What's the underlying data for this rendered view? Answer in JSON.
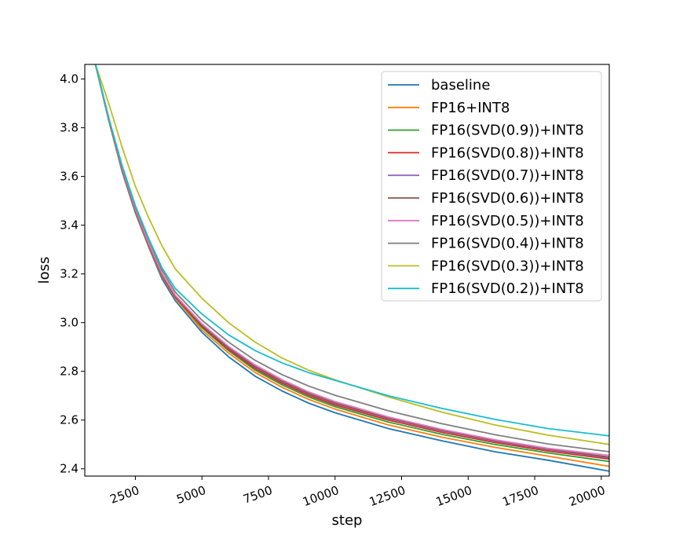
{
  "chart_data": {
    "type": "line",
    "title": "",
    "xlabel": "step",
    "ylabel": "loss",
    "xlim": [
      600,
      20300
    ],
    "ylim": [
      2.37,
      4.06
    ],
    "x_ticks": [
      2500,
      5000,
      7500,
      10000,
      12500,
      15000,
      17500,
      20000
    ],
    "y_ticks": [
      2.4,
      2.6,
      2.8,
      3.0,
      3.2,
      3.4,
      3.6,
      3.8,
      4.0
    ],
    "x_tick_labels": [
      "2500",
      "5000",
      "7500",
      "10000",
      "12500",
      "15000",
      "17500",
      "20000"
    ],
    "y_tick_labels": [
      "2.4",
      "2.6",
      "2.8",
      "3.0",
      "3.2",
      "3.4",
      "3.6",
      "3.8",
      "4.0"
    ],
    "x_tick_rotation": "20 degrees",
    "grid": false,
    "legend_position": "top-right",
    "x": [
      1000,
      1500,
      2000,
      2500,
      3000,
      3500,
      4000,
      5000,
      6000,
      7000,
      8000,
      9000,
      10000,
      12000,
      14000,
      16000,
      18000,
      20300
    ],
    "series": [
      {
        "name": "baseline",
        "color": "#1f77b4",
        "values": [
          4.06,
          3.83,
          3.62,
          3.45,
          3.31,
          3.18,
          3.09,
          2.96,
          2.86,
          2.78,
          2.72,
          2.67,
          2.63,
          2.565,
          2.515,
          2.47,
          2.435,
          2.39
        ]
      },
      {
        "name": "FP16+INT8",
        "color": "#ff7f0e",
        "values": [
          4.06,
          3.83,
          3.625,
          3.455,
          3.315,
          3.19,
          3.1,
          2.97,
          2.875,
          2.795,
          2.735,
          2.685,
          2.645,
          2.58,
          2.53,
          2.488,
          2.452,
          2.41
        ]
      },
      {
        "name": "FP16(SVD(0.9))+INT8",
        "color": "#2ca02c",
        "values": [
          4.06,
          3.835,
          3.63,
          3.46,
          3.32,
          3.195,
          3.105,
          2.98,
          2.885,
          2.805,
          2.745,
          2.695,
          2.655,
          2.592,
          2.542,
          2.5,
          2.465,
          2.43
        ]
      },
      {
        "name": "FP16(SVD(0.8))+INT8",
        "color": "#d62728",
        "values": [
          4.06,
          3.835,
          3.63,
          3.46,
          3.32,
          3.195,
          3.105,
          2.985,
          2.89,
          2.812,
          2.752,
          2.702,
          2.662,
          2.6,
          2.55,
          2.508,
          2.473,
          2.44
        ]
      },
      {
        "name": "FP16(SVD(0.7))+INT8",
        "color": "#9467bd",
        "values": [
          4.06,
          3.835,
          3.632,
          3.462,
          3.322,
          3.198,
          3.108,
          2.99,
          2.895,
          2.818,
          2.758,
          2.708,
          2.668,
          2.606,
          2.556,
          2.514,
          2.479,
          2.445
        ]
      },
      {
        "name": "FP16(SVD(0.6))+INT8",
        "color": "#8c564b",
        "values": [
          4.06,
          3.835,
          3.632,
          3.462,
          3.322,
          3.198,
          3.108,
          2.99,
          2.897,
          2.82,
          2.76,
          2.71,
          2.67,
          2.608,
          2.558,
          2.516,
          2.481,
          2.448
        ]
      },
      {
        "name": "FP16(SVD(0.5))+INT8",
        "color": "#e377c2",
        "values": [
          4.06,
          3.838,
          3.635,
          3.466,
          3.326,
          3.202,
          3.112,
          2.995,
          2.902,
          2.826,
          2.766,
          2.716,
          2.676,
          2.613,
          2.562,
          2.519,
          2.484,
          2.455
        ]
      },
      {
        "name": "FP16(SVD(0.4))+INT8",
        "color": "#7f7f7f",
        "values": [
          4.06,
          3.84,
          3.64,
          3.475,
          3.34,
          3.215,
          3.125,
          3.01,
          2.92,
          2.845,
          2.787,
          2.74,
          2.702,
          2.638,
          2.585,
          2.54,
          2.502,
          2.47
        ]
      },
      {
        "name": "FP16(SVD(0.3))+INT8",
        "color": "#bcbd22",
        "values": [
          4.06,
          3.9,
          3.72,
          3.56,
          3.43,
          3.315,
          3.22,
          3.1,
          3.0,
          2.92,
          2.855,
          2.805,
          2.765,
          2.695,
          2.633,
          2.58,
          2.538,
          2.5
        ]
      },
      {
        "name": "FP16(SVD(0.2))+INT8",
        "color": "#17becf",
        "values": [
          4.06,
          3.84,
          3.645,
          3.48,
          3.345,
          3.225,
          3.14,
          3.035,
          2.95,
          2.885,
          2.835,
          2.795,
          2.763,
          2.7,
          2.648,
          2.603,
          2.565,
          2.535
        ]
      }
    ]
  }
}
